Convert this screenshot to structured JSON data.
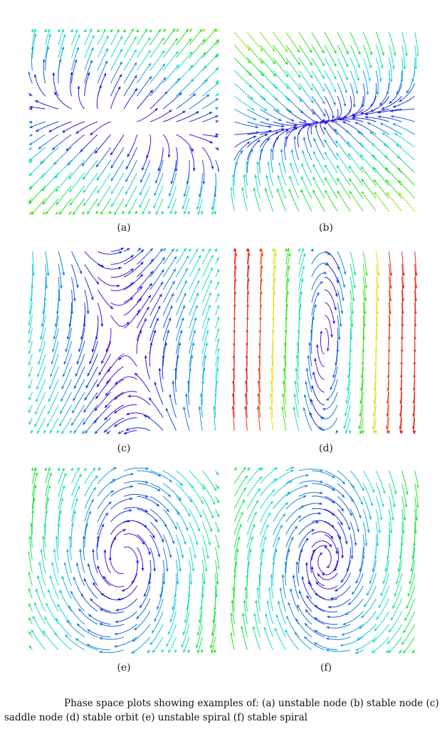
{
  "figure": {
    "panels": [
      {
        "label": "(a)",
        "kind": "unstable-node"
      },
      {
        "label": "(b)",
        "kind": "stable-node"
      },
      {
        "label": "(c)",
        "kind": "saddle"
      },
      {
        "label": "(d)",
        "kind": "stable-orbit"
      },
      {
        "label": "(e)",
        "kind": "unstable-spiral"
      },
      {
        "label": "(f)",
        "kind": "stable-spiral"
      }
    ],
    "caption": "Phase space plots showing examples of: (a) unstable node (b) stable node (c) saddle node (d) stable orbit (e) unstable spiral (f) stable spiral"
  }
}
